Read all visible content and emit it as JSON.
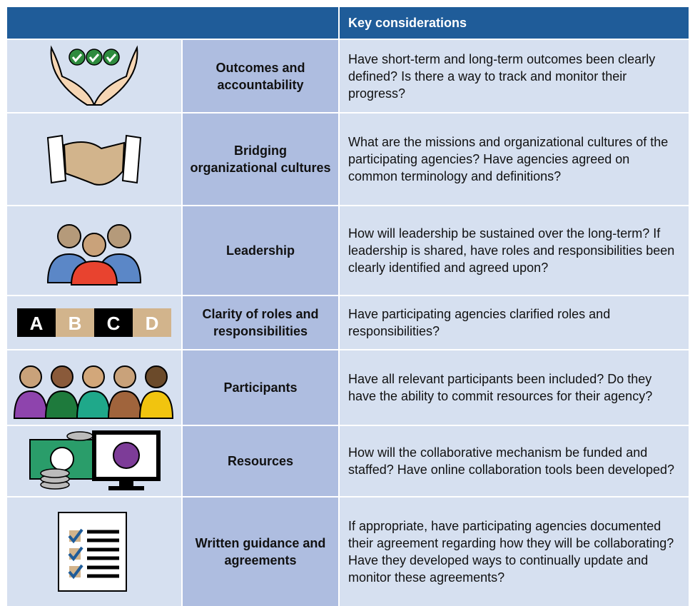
{
  "header": {
    "title": "Key considerations"
  },
  "rows": [
    {
      "label": "Outcomes and accountability",
      "text": "Have short-term and long-term outcomes been clearly defined? Is there a way to track and monitor their progress?"
    },
    {
      "label": "Bridging organizational cultures",
      "text": "What are the missions and organizational cultures of the participating agencies? Have agencies agreed on common terminology and definitions?"
    },
    {
      "label": "Leadership",
      "text": "How will leadership be sustained over the long-term? If leadership is shared, have roles and responsibilities been clearly identified and agreed upon?"
    },
    {
      "label": "Clarity of roles and responsibilities",
      "text": "Have participating agencies clarified roles and responsibilities?",
      "icon_letters": [
        "A",
        "B",
        "C",
        "D"
      ]
    },
    {
      "label": "Participants",
      "text": "Have all relevant participants been included? Do they have the ability to commit resources for their agency?"
    },
    {
      "label": "Resources",
      "text": "How will the collaborative mechanism be funded and staffed? Have online collaboration tools been developed?"
    },
    {
      "label": "Written guidance and agreements",
      "text": "If appropriate, have participating agencies documented their agreement regarding how they will be collaborating? Have they developed ways to continually update and monitor these agreements?"
    }
  ]
}
